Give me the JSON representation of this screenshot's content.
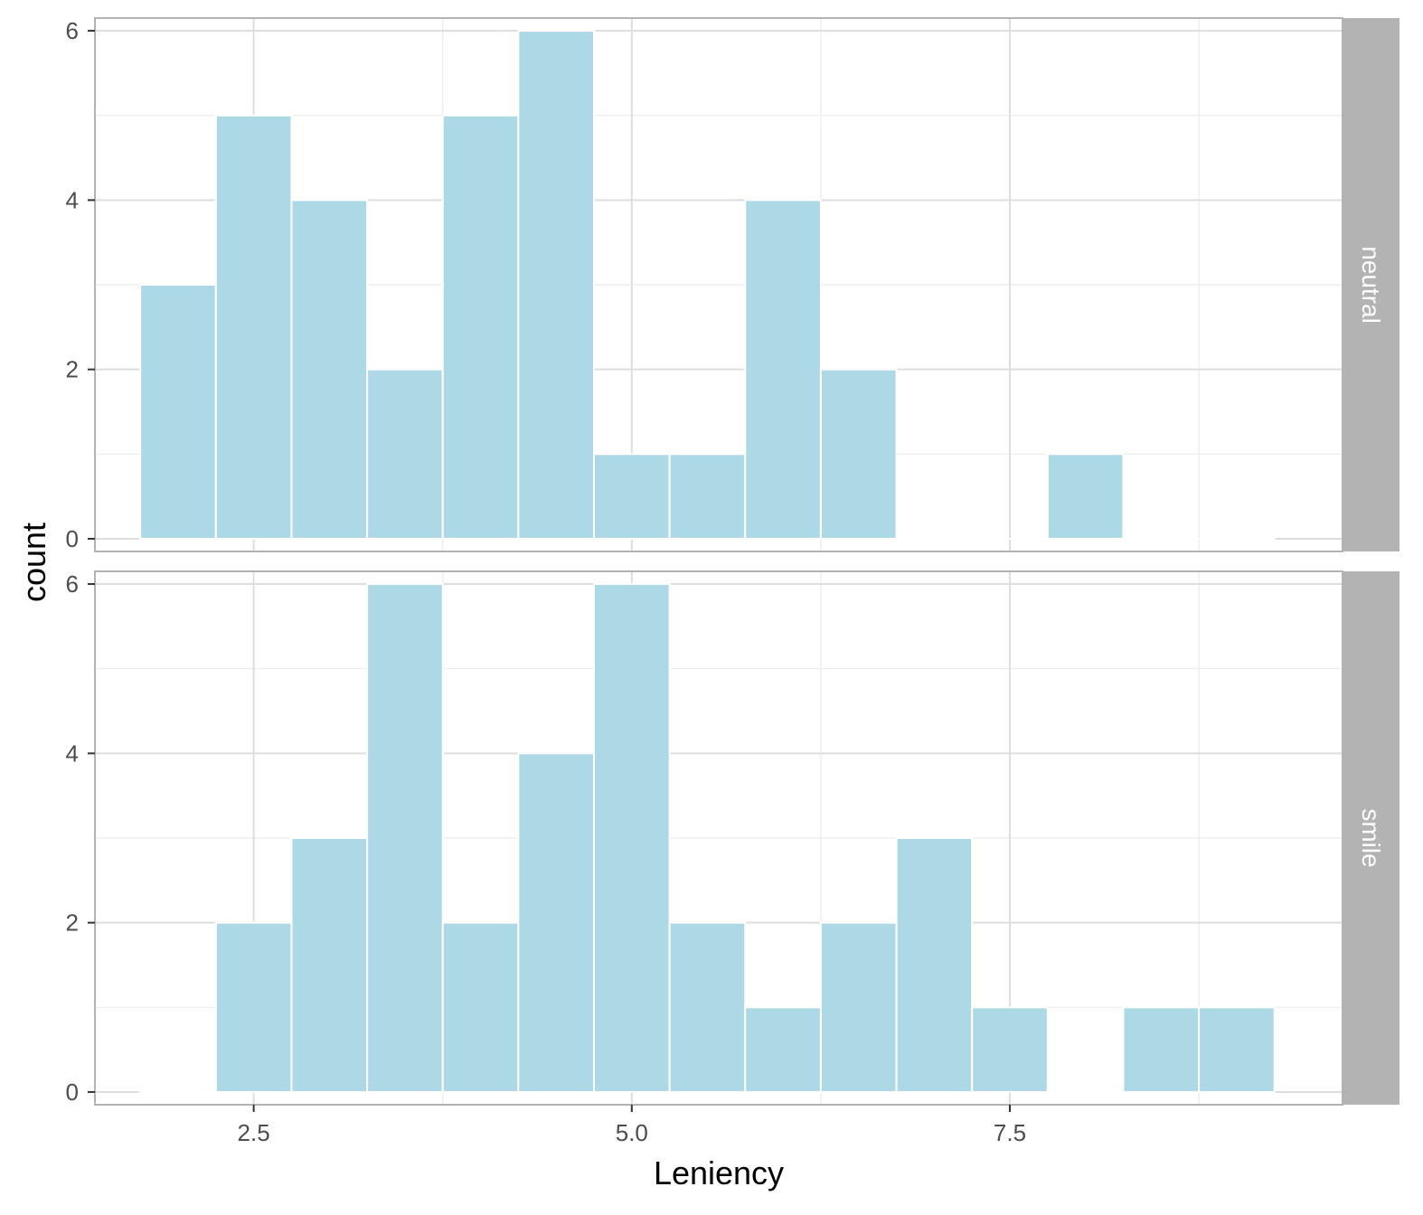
{
  "chart_data": {
    "type": "bar",
    "subtype": "faceted-histogram",
    "xlabel": "Leniency",
    "ylabel": "count",
    "x_ticks": [
      "2.5",
      "5.0",
      "7.5"
    ],
    "y_ticks": [
      "0",
      "2",
      "4",
      "6"
    ],
    "xlim": [
      1.45,
      9.7
    ],
    "ylim": [
      -0.15,
      6.15
    ],
    "bin_edges": [
      1.75,
      2.25,
      2.75,
      3.25,
      3.75,
      4.25,
      4.75,
      5.25,
      5.75,
      6.25,
      6.75,
      7.25,
      7.75,
      8.25,
      8.75,
      9.25
    ],
    "grid": true,
    "fill_color": "#ADD8E6",
    "strip_color": "#B3B3B3",
    "facets": [
      {
        "name": "neutral",
        "values": [
          3,
          5,
          4,
          2,
          5,
          6,
          1,
          1,
          4,
          2,
          0,
          0,
          1,
          0,
          0
        ]
      },
      {
        "name": "smile",
        "values": [
          0,
          2,
          3,
          6,
          2,
          4,
          6,
          2,
          1,
          2,
          3,
          1,
          0,
          1,
          1
        ]
      }
    ]
  }
}
